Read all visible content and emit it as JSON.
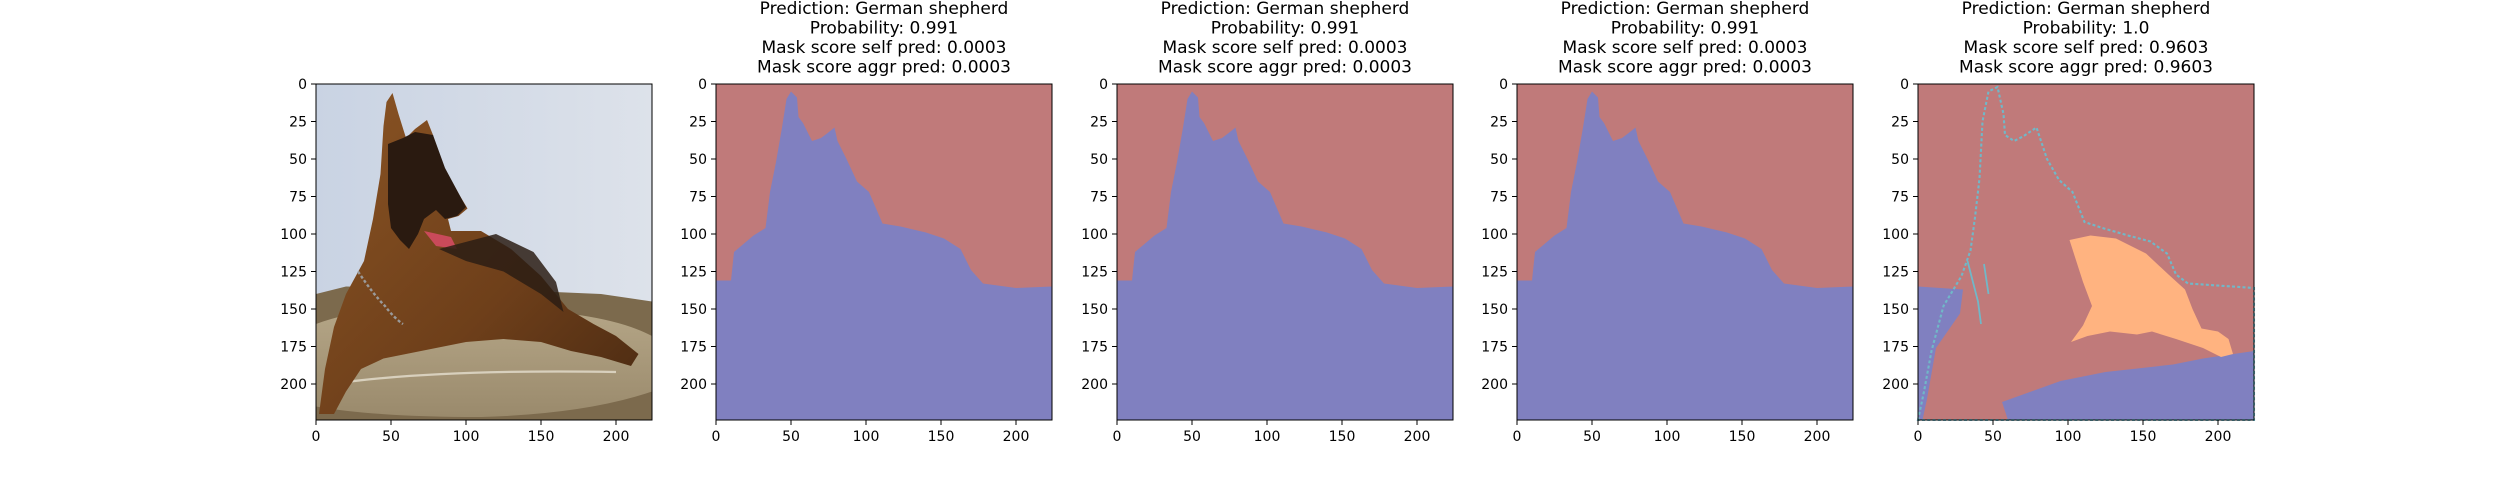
{
  "chart_data": [
    {
      "type": "image",
      "title_lines": [],
      "image": "photo of a german shepherd lying on a cushion",
      "xlim": [
        0,
        224
      ],
      "ylim": [
        224,
        0
      ],
      "xticks": [
        0,
        50,
        100,
        150,
        200
      ],
      "yticks": [
        0,
        25,
        50,
        75,
        100,
        125,
        150,
        175,
        200
      ]
    },
    {
      "type": "heatmap",
      "title_lines": [
        "Prediction: German shepherd",
        "Probability: 0.991",
        "Mask score self pred: 0.0003",
        "Mask score aggr pred: 0.0003"
      ],
      "mask_style": "standard",
      "xlim": [
        0,
        224
      ],
      "ylim": [
        224,
        0
      ],
      "xticks": [
        0,
        50,
        100,
        150,
        200
      ],
      "yticks": [
        0,
        25,
        50,
        75,
        100,
        125,
        150,
        175,
        200
      ]
    },
    {
      "type": "heatmap",
      "title_lines": [
        "Prediction: German shepherd",
        "Probability: 0.991",
        "Mask score self pred: 0.0003",
        "Mask score aggr pred: 0.0003"
      ],
      "mask_style": "standard",
      "xlim": [
        0,
        224
      ],
      "ylim": [
        224,
        0
      ],
      "xticks": [
        0,
        50,
        100,
        150,
        200
      ],
      "yticks": [
        0,
        25,
        50,
        75,
        100,
        125,
        150,
        175,
        200
      ]
    },
    {
      "type": "heatmap",
      "title_lines": [
        "Prediction: German shepherd",
        "Probability: 0.991",
        "Mask score self pred: 0.0003",
        "Mask score aggr pred: 0.0003"
      ],
      "mask_style": "standard",
      "xlim": [
        0,
        224
      ],
      "ylim": [
        224,
        0
      ],
      "xticks": [
        0,
        50,
        100,
        150,
        200
      ],
      "yticks": [
        0,
        25,
        50,
        75,
        100,
        125,
        150,
        175,
        200
      ]
    },
    {
      "type": "heatmap",
      "title_lines": [
        "Prediction: German shepherd",
        "Probability: 1.0",
        "Mask score self pred: 0.9603",
        "Mask score aggr pred: 0.9603"
      ],
      "mask_style": "segmented",
      "xlim": [
        0,
        224
      ],
      "ylim": [
        224,
        0
      ],
      "xticks": [
        0,
        50,
        100,
        150,
        200
      ],
      "yticks": [
        0,
        25,
        50,
        75,
        100,
        125,
        150,
        175,
        200
      ]
    }
  ],
  "colors": {
    "background_region": "#c07a7a",
    "dog_region": "#8080c0",
    "highlight_region": "#ffb380",
    "dog_outline": "#70b8c8"
  }
}
